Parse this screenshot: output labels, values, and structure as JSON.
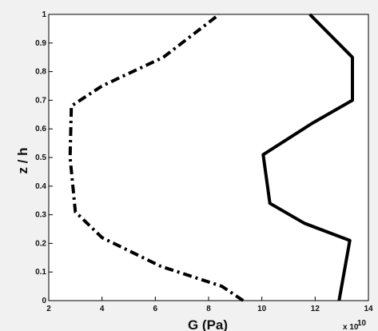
{
  "chart_data": {
    "type": "line",
    "title": "",
    "xlabel": "G (Pa)",
    "ylabel": "z / h",
    "x_multiplier_label": "x 10",
    "x_multiplier_exponent": "10",
    "xlim": [
      2,
      14
    ],
    "ylim": [
      0,
      1
    ],
    "xticks": [
      2,
      4,
      6,
      8,
      10,
      12,
      14
    ],
    "yticks": [
      0,
      0.1,
      0.2,
      0.3,
      0.4,
      0.5,
      0.6,
      0.7,
      0.8,
      0.9,
      1
    ],
    "x_tick_labels": [
      "2",
      "4",
      "6",
      "8",
      "10",
      "12",
      "14"
    ],
    "y_tick_labels": [
      "0",
      "0.1",
      "0.2",
      "0.3",
      "0.4",
      "0.5",
      "0.6",
      "0.7",
      "0.8",
      "0.9",
      "1"
    ],
    "grid": false,
    "legend": "none",
    "background_color": "#f1f1f1",
    "plot_background_color": "#ffffff",
    "series": [
      {
        "style": "dash-dot",
        "color": "#000000",
        "x": [
          9.3,
          8.5,
          6.2,
          4.0,
          3.0,
          2.8,
          2.85,
          4.0,
          6.3,
          8.4
        ],
        "y": [
          0.0,
          0.05,
          0.12,
          0.22,
          0.31,
          0.5,
          0.68,
          0.75,
          0.85,
          1.0
        ]
      },
      {
        "style": "solid",
        "color": "#000000",
        "x": [
          12.9,
          13.3,
          11.6,
          10.3,
          10.05,
          11.9,
          13.4,
          13.4,
          11.8
        ],
        "y": [
          0.0,
          0.21,
          0.27,
          0.34,
          0.51,
          0.62,
          0.7,
          0.85,
          1.0
        ]
      }
    ]
  }
}
